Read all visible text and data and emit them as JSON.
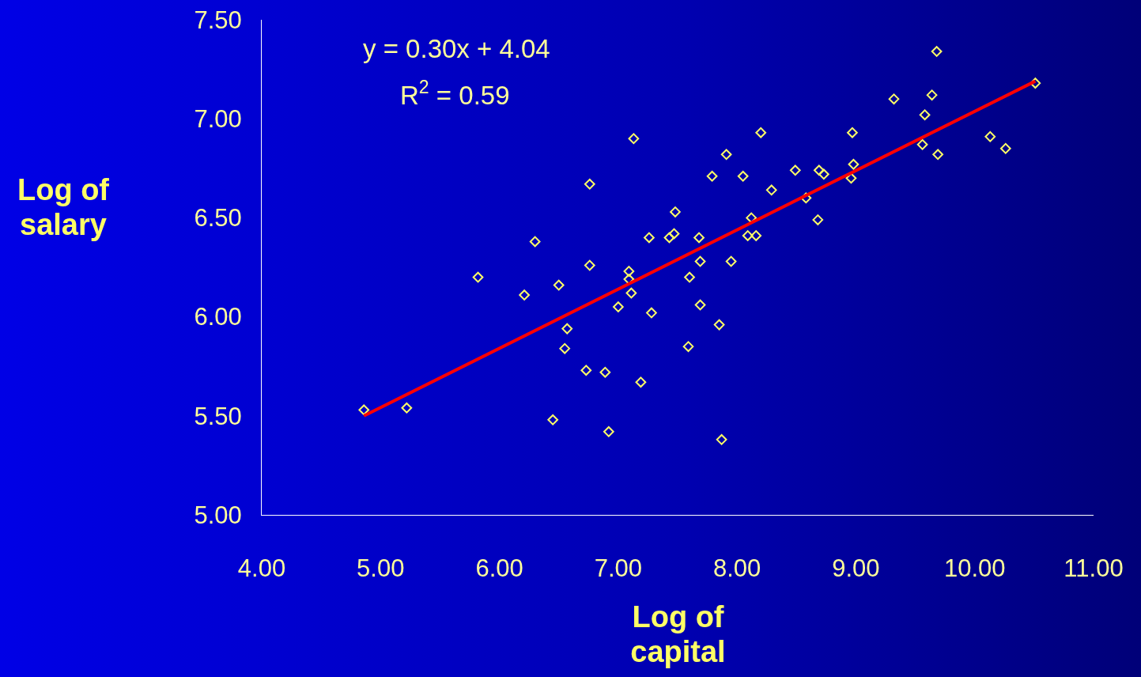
{
  "chart_data": {
    "type": "scatter",
    "xlabel": "Log of capital",
    "ylabel": "Log of salary",
    "annotations": [
      "y = 0.30x + 4.04",
      "R$^{2}$ = 0.59"
    ],
    "xlim": [
      4,
      11
    ],
    "xticks": [
      {
        "value": 4,
        "label": "4.00"
      },
      {
        "value": 5,
        "label": "5.00"
      },
      {
        "value": 6,
        "label": "6.00"
      },
      {
        "value": 7,
        "label": "7.00"
      },
      {
        "value": 8,
        "label": "8.00"
      },
      {
        "value": 9,
        "label": "9.00"
      },
      {
        "value": 10,
        "label": "10.00"
      },
      {
        "value": 11,
        "label": "11.00"
      }
    ],
    "ylim": [
      5,
      7.5
    ],
    "yticks": [
      {
        "value": 5,
        "label": "5.00"
      },
      {
        "value": 5.5,
        "label": "5.50"
      },
      {
        "value": 6,
        "label": "6.00"
      },
      {
        "value": 6.5,
        "label": "6.50"
      },
      {
        "value": 7,
        "label": "7.00"
      },
      {
        "value": 7.5,
        "label": "7.50"
      }
    ],
    "series": [
      {
        "type": "scatter",
        "marker": "diamond",
        "color": "#ffff66",
        "x": [
          4.86,
          5.22,
          5.82,
          6.21,
          6.3,
          6.5,
          6.57,
          6.55,
          6.45,
          6.73,
          6.76,
          6.76,
          6.89,
          6.92,
          7.0,
          7.09,
          7.09,
          7.11,
          7.13,
          7.19,
          7.26,
          7.28,
          7.43,
          7.47,
          7.48,
          7.59,
          7.6,
          7.68,
          7.69,
          7.69,
          7.79,
          7.85,
          7.87,
          7.91,
          7.95,
          8.05,
          8.09,
          8.12,
          8.16,
          8.2,
          8.29,
          8.49,
          8.58,
          8.68,
          8.69,
          8.73,
          8.96,
          8.97,
          8.98,
          9.32,
          9.56,
          9.58,
          9.64,
          9.68,
          9.69,
          10.13,
          10.26,
          10.51
        ],
        "values": [
          5.53,
          5.54,
          6.2,
          6.11,
          6.38,
          6.16,
          5.94,
          5.84,
          5.48,
          5.73,
          6.67,
          6.26,
          5.72,
          5.42,
          6.05,
          6.23,
          6.19,
          6.12,
          6.9,
          5.67,
          6.4,
          6.02,
          6.4,
          6.42,
          6.53,
          5.85,
          6.2,
          6.4,
          6.28,
          6.06,
          6.71,
          5.96,
          5.38,
          6.82,
          6.28,
          6.71,
          6.41,
          6.5,
          6.41,
          6.93,
          6.64,
          6.74,
          6.6,
          6.49,
          6.74,
          6.72,
          6.7,
          6.93,
          6.77,
          7.1,
          6.87,
          7.02,
          7.12,
          7.34,
          6.82,
          6.91,
          6.85,
          7.18
        ]
      },
      {
        "type": "line",
        "color": "#ff0000",
        "line_style": "solid",
        "x": [
          4.86,
          10.51
        ],
        "values": [
          5.5,
          7.19
        ]
      }
    ]
  }
}
